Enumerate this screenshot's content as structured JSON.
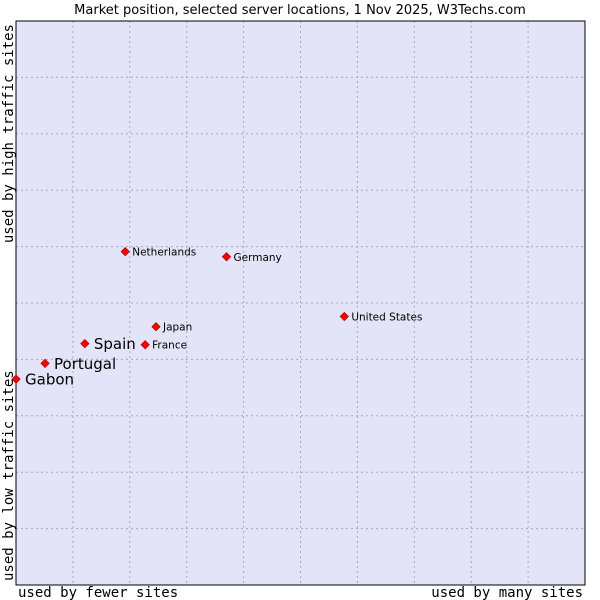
{
  "chart_data": {
    "type": "scatter",
    "title": "Market position, selected server locations, 1 Nov 2025, W3Techs.com",
    "xlabel_low": "used by fewer sites",
    "xlabel_high": "used by many sites",
    "ylabel_low": "used by low traffic sites",
    "ylabel_high": "used by high traffic sites",
    "xlim": [
      0,
      100
    ],
    "ylim": [
      0,
      100
    ],
    "grid": true,
    "colors": {
      "plot_bg": "#e4e4f8",
      "grid": "#a8a8c0",
      "border": "#000000",
      "marker": "#ff0000",
      "marker_edge": "#990000"
    },
    "points": [
      {
        "name": "Netherlands",
        "x": 19.2,
        "y": 59.1,
        "emphasis": false
      },
      {
        "name": "Germany",
        "x": 37.0,
        "y": 58.2,
        "emphasis": false
      },
      {
        "name": "United States",
        "x": 57.7,
        "y": 47.6,
        "emphasis": false
      },
      {
        "name": "Japan",
        "x": 24.6,
        "y": 45.8,
        "emphasis": false
      },
      {
        "name": "France",
        "x": 22.7,
        "y": 42.6,
        "emphasis": false
      },
      {
        "name": "Spain",
        "x": 12.1,
        "y": 42.8,
        "emphasis": true
      },
      {
        "name": "Portugal",
        "x": 5.1,
        "y": 39.3,
        "emphasis": true
      },
      {
        "name": "Gabon",
        "x": 0.0,
        "y": 36.5,
        "emphasis": true
      }
    ]
  }
}
